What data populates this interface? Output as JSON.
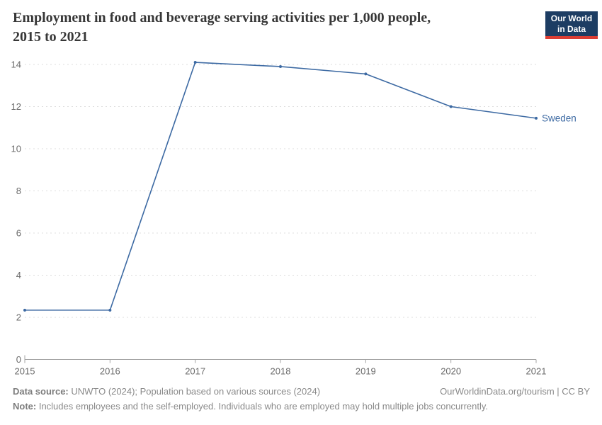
{
  "header": {
    "title_line1": "Employment in food and beverage serving activities per 1,000 people,",
    "title_line2": "2015 to 2021",
    "logo": {
      "line1": "Our World",
      "line2": "in Data",
      "bg_color": "#1d3d63",
      "accent_color": "#dc3d33"
    }
  },
  "chart_data": {
    "type": "line",
    "title": "Employment in food and beverage serving activities per 1,000 people, 2015 to 2021",
    "x": [
      2015,
      2016,
      2017,
      2018,
      2019,
      2020,
      2021
    ],
    "series": [
      {
        "name": "Sweden",
        "values": [
          2.34,
          2.34,
          14.1,
          13.9,
          13.55,
          12.0,
          11.45
        ],
        "color": "#3d6aa3"
      }
    ],
    "yticks": [
      0,
      2,
      4,
      6,
      8,
      10,
      12,
      14
    ],
    "ylim": [
      0,
      14.6
    ],
    "xlabel": "",
    "ylabel": "",
    "grid": "horizontal-dashed",
    "legend_position": "end-of-line-label",
    "colors": {
      "grid": "#dcdcdc",
      "axis": "#a3a3a3",
      "tick_label": "#6b6b6b"
    }
  },
  "footer": {
    "source_label": "Data source:",
    "source_text": " UNWTO (2024); Population based on various sources (2024)",
    "attribution": "OurWorldinData.org/tourism | CC BY",
    "note_label": "Note:",
    "note_text": " Includes employees and the self-employed. Individuals who are employed may hold multiple jobs concurrently."
  }
}
